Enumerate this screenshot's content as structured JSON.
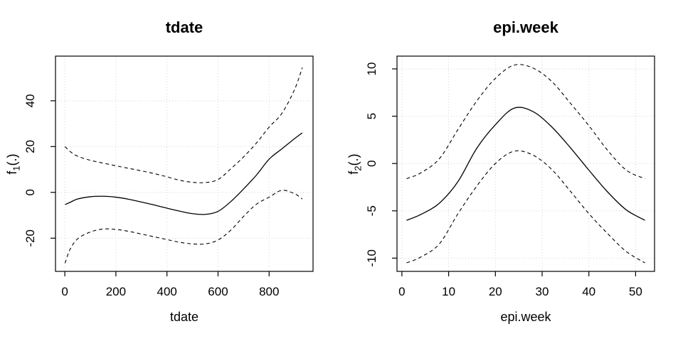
{
  "figure": {
    "background": "#ffffff"
  },
  "chart_data": [
    {
      "type": "line",
      "title": "tdate",
      "xlabel": "tdate",
      "ylabel": {
        "base": "f",
        "sub": "1",
        "rest": "(.)"
      },
      "xlim": [
        -36.5,
        972
      ],
      "ylim": [
        -34.5,
        59.5
      ],
      "xticks": [
        0,
        200,
        400,
        600,
        800
      ],
      "yticks": [
        -20,
        0,
        20,
        40
      ],
      "grid": true,
      "legend": null,
      "colors": {
        "line": "#000000",
        "grid": "#d3d3d3"
      },
      "series": [
        {
          "name": "fit",
          "style": "solid",
          "x": [
            1,
            20,
            50,
            100,
            150,
            200,
            250,
            300,
            350,
            400,
            450,
            500,
            550,
            600,
            650,
            700,
            750,
            800,
            850,
            900,
            930
          ],
          "y": [
            -5.3,
            -4.4,
            -2.9,
            -1.9,
            -1.7,
            -2.1,
            -3.0,
            -4.2,
            -5.5,
            -6.9,
            -8.2,
            -9.3,
            -9.6,
            -8.3,
            -4.0,
            1.5,
            7.5,
            14.5,
            19.0,
            23.5,
            26.0
          ]
        },
        {
          "name": "upper-ci",
          "style": "dashed",
          "x": [
            1,
            20,
            50,
            100,
            150,
            200,
            250,
            300,
            350,
            400,
            450,
            500,
            550,
            600,
            650,
            700,
            750,
            800,
            850,
            900,
            930
          ],
          "y": [
            20.0,
            17.9,
            15.8,
            14.0,
            12.8,
            11.6,
            10.5,
            9.4,
            8.2,
            6.8,
            5.3,
            4.4,
            4.3,
            5.6,
            10.3,
            15.5,
            21.5,
            28.5,
            34.5,
            45.0,
            54.5
          ]
        },
        {
          "name": "lower-ci",
          "style": "dashed",
          "x": [
            1,
            20,
            50,
            100,
            150,
            200,
            250,
            300,
            350,
            400,
            450,
            500,
            550,
            600,
            650,
            700,
            750,
            800,
            850,
            900,
            930
          ],
          "y": [
            -30.9,
            -25.0,
            -20.3,
            -17.3,
            -16.0,
            -16.2,
            -17.0,
            -18.2,
            -19.4,
            -20.6,
            -21.8,
            -22.5,
            -22.5,
            -20.8,
            -16.5,
            -10.5,
            -5.2,
            -2.1,
            0.9,
            -0.6,
            -2.9
          ]
        }
      ]
    },
    {
      "type": "line",
      "title": "epi.week",
      "xlabel": "epi.week",
      "ylabel": {
        "base": "f",
        "sub": "2",
        "rest": "(.)"
      },
      "xlim": [
        -1.05,
        54.05
      ],
      "ylim": [
        -11.4,
        11.35
      ],
      "xticks": [
        0,
        10,
        20,
        30,
        40,
        50
      ],
      "yticks": [
        -10,
        -5,
        0,
        5,
        10
      ],
      "grid": true,
      "legend": null,
      "colors": {
        "line": "#000000",
        "grid": "#d3d3d3"
      },
      "series": [
        {
          "name": "fit",
          "style": "solid",
          "x": [
            1,
            4,
            8,
            12,
            16,
            20,
            24,
            28,
            32,
            36,
            40,
            44,
            48,
            52
          ],
          "y": [
            -6.0,
            -5.4,
            -4.2,
            -1.9,
            1.6,
            4.1,
            5.85,
            5.5,
            3.9,
            1.7,
            -0.7,
            -3.0,
            -4.9,
            -6.0
          ]
        },
        {
          "name": "upper-ci",
          "style": "dashed",
          "x": [
            1,
            4,
            8,
            12,
            16,
            20,
            24,
            28,
            32,
            36,
            40,
            44,
            48,
            52
          ],
          "y": [
            -1.6,
            -1.0,
            0.5,
            3.6,
            6.6,
            9.0,
            10.4,
            10.1,
            8.7,
            6.4,
            4.0,
            1.4,
            -0.7,
            -1.6
          ]
        },
        {
          "name": "lower-ci",
          "style": "dashed",
          "x": [
            1,
            4,
            8,
            12,
            16,
            20,
            24,
            28,
            32,
            36,
            40,
            44,
            48,
            52
          ],
          "y": [
            -10.5,
            -9.9,
            -8.5,
            -5.3,
            -2.4,
            0.0,
            1.3,
            0.9,
            -0.6,
            -2.9,
            -5.3,
            -7.4,
            -9.3,
            -10.5
          ]
        }
      ]
    }
  ]
}
